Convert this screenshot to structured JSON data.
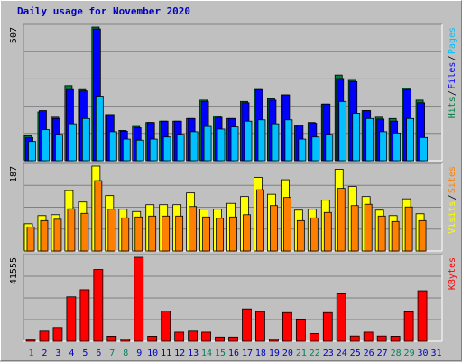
{
  "title": "Daily usage for November 2020",
  "colors": {
    "hits": "#008040",
    "files": "#0000ff",
    "pages": "#00c0ff",
    "visits": "#ffff00",
    "sites": "#ff8000",
    "kbytes": "#ff0000",
    "weekend_day": "#00805c",
    "weekday": "#0000c0"
  },
  "chart_data": [
    {
      "type": "bar",
      "name": "hits-files-pages",
      "ymax_label": "507",
      "ylim": [
        0,
        507
      ],
      "legend": [
        "Pages",
        "/",
        "Files",
        "/",
        "Hits"
      ],
      "legend_placement": "right",
      "grid": true,
      "categories": [
        "1",
        "2",
        "3",
        "4",
        "5",
        "6",
        "7",
        "8",
        "9",
        "10",
        "11",
        "12",
        "13",
        "14",
        "15",
        "16",
        "17",
        "18",
        "19",
        "20",
        "21",
        "22",
        "23",
        "24",
        "25",
        "26",
        "27",
        "28",
        "29",
        "30",
        "31"
      ],
      "series": [
        {
          "name": "Hits",
          "values": [
            95,
            185,
            165,
            285,
            270,
            507,
            175,
            115,
            130,
            145,
            150,
            150,
            160,
            230,
            170,
            160,
            225,
            270,
            235,
            250,
            135,
            145,
            215,
            325,
            305,
            190,
            165,
            160,
            275,
            230,
            0
          ]
        },
        {
          "name": "Files",
          "values": [
            88,
            190,
            160,
            270,
            265,
            500,
            175,
            112,
            125,
            145,
            150,
            150,
            160,
            225,
            165,
            160,
            220,
            270,
            230,
            250,
            135,
            142,
            215,
            312,
            300,
            190,
            158,
            150,
            270,
            220,
            0
          ]
        },
        {
          "name": "Pages",
          "values": [
            73,
            118,
            100,
            140,
            160,
            245,
            110,
            82,
            78,
            82,
            90,
            100,
            110,
            130,
            120,
            128,
            150,
            155,
            140,
            155,
            82,
            90,
            100,
            225,
            180,
            160,
            110,
            105,
            160,
            88,
            0
          ]
        }
      ]
    },
    {
      "type": "bar",
      "name": "visits-sites",
      "ymax_label": "187",
      "ylim": [
        0,
        187
      ],
      "legend": [
        "Sites",
        "/",
        "Visits"
      ],
      "legend_placement": "right",
      "grid": true,
      "categories": [
        "1",
        "2",
        "3",
        "4",
        "5",
        "6",
        "7",
        "8",
        "9",
        "10",
        "11",
        "12",
        "13",
        "14",
        "15",
        "16",
        "17",
        "18",
        "19",
        "20",
        "21",
        "22",
        "23",
        "24",
        "25",
        "26",
        "27",
        "28",
        "29",
        "30",
        "31"
      ],
      "series": [
        {
          "name": "Visits",
          "values": [
            60,
            78,
            80,
            133,
            108,
            187,
            122,
            92,
            87,
            102,
            102,
            102,
            128,
            92,
            92,
            105,
            120,
            162,
            125,
            157,
            90,
            92,
            112,
            180,
            142,
            120,
            90,
            78,
            115,
            82,
            0
          ]
        },
        {
          "name": "Sites",
          "values": [
            53,
            67,
            70,
            93,
            83,
            155,
            92,
            73,
            75,
            77,
            77,
            77,
            98,
            75,
            72,
            75,
            80,
            135,
            100,
            118,
            67,
            73,
            85,
            138,
            100,
            103,
            77,
            65,
            97,
            67,
            0
          ]
        }
      ]
    },
    {
      "type": "bar",
      "name": "kbytes",
      "ymax_label": "41555",
      "ylim": [
        0,
        41555
      ],
      "legend": [
        "KBytes"
      ],
      "legend_placement": "right",
      "grid": true,
      "categories": [
        "1",
        "2",
        "3",
        "4",
        "5",
        "6",
        "7",
        "8",
        "9",
        "10",
        "11",
        "12",
        "13",
        "14",
        "15",
        "16",
        "17",
        "18",
        "19",
        "20",
        "21",
        "22",
        "23",
        "24",
        "25",
        "26",
        "27",
        "28",
        "29",
        "30",
        "31"
      ],
      "series": [
        {
          "name": "KBytes",
          "values": [
            600,
            5000,
            6800,
            22000,
            25500,
            35500,
            2500,
            1100,
            41555,
            2500,
            15000,
            4500,
            5000,
            4500,
            2100,
            2100,
            16000,
            14700,
            1000,
            14200,
            11000,
            3800,
            14200,
            23500,
            2600,
            4500,
            2600,
            2500,
            14600,
            25000,
            0
          ]
        }
      ]
    }
  ],
  "x_labels": [
    "1",
    "2",
    "3",
    "4",
    "5",
    "6",
    "7",
    "8",
    "9",
    "10",
    "11",
    "12",
    "13",
    "14",
    "15",
    "16",
    "17",
    "18",
    "19",
    "20",
    "21",
    "22",
    "23",
    "24",
    "25",
    "26",
    "27",
    "28",
    "29",
    "30",
    "31"
  ],
  "weekend_days": [
    "1",
    "7",
    "8",
    "14",
    "15",
    "21",
    "22",
    "28",
    "29"
  ]
}
